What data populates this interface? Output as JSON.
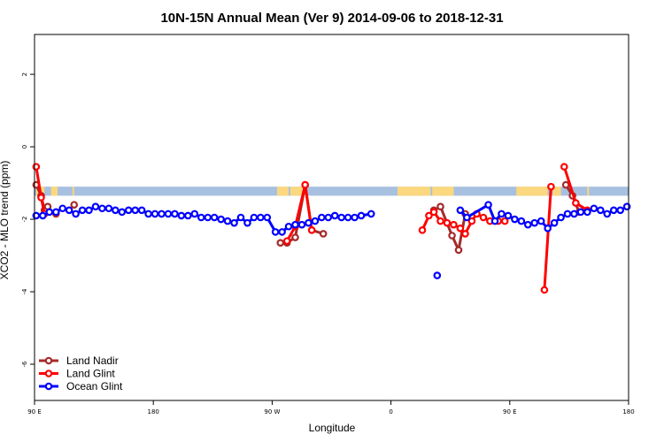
{
  "chart_data": {
    "type": "line",
    "title": "10N-15N Annual Mean (Ver 9)   2014-09-06 to 2018-12-31",
    "xlabel": "Longitude",
    "ylabel": "XCO2 - MLO trend (ppm)",
    "xlim": [
      -90,
      270
    ],
    "ylim": [
      -7,
      3.1
    ],
    "x_ticks": [
      -90,
      -18,
      54,
      126,
      198,
      270
    ],
    "x_tick_labels": [
      "90 E",
      "180",
      "90 W",
      "0",
      "90 E",
      "180"
    ],
    "y_ticks": [
      2,
      0,
      -2,
      -4,
      -6
    ],
    "y_tick_labels": [
      "2",
      "0",
      "-2",
      "-4",
      "-6"
    ],
    "grid": false,
    "legend_position": "bottom-left",
    "land_strip": {
      "y_top": -1.1,
      "y_bottom": -1.35,
      "ocean_color": "#a8c0e0",
      "land_color": "#fbd87f"
    },
    "land_segments": [
      [
        -89,
        -84
      ],
      [
        -80,
        -76
      ],
      [
        -67,
        -66
      ],
      [
        57,
        64
      ],
      [
        65,
        74
      ],
      [
        130,
        150
      ],
      [
        151,
        164
      ],
      [
        202,
        221
      ],
      [
        224,
        229
      ],
      [
        245,
        246
      ]
    ],
    "series": [
      {
        "name": "Land Nadir",
        "color": "#a52a2a",
        "points": [
          [
            -89,
            -1.05
          ],
          [
            -86,
            -1.35
          ],
          [
            -84,
            -1.75
          ],
          [
            -82,
            -1.65
          ],
          [
            -77,
            -1.85
          ],
          [
            -66,
            -1.6
          ],
          [
            59,
            -2.65
          ],
          [
            63,
            -2.65
          ],
          [
            68,
            -2.5
          ],
          [
            74,
            -1.05
          ],
          [
            78,
            -2.3
          ],
          [
            85,
            -2.4
          ],
          [
            152,
            -1.75
          ],
          [
            156,
            -1.65
          ],
          [
            163,
            -2.45
          ],
          [
            167,
            -2.85
          ],
          [
            171,
            -1.85
          ],
          [
            232,
            -1.05
          ],
          [
            236,
            -1.35
          ],
          [
            240,
            -1.8
          ]
        ],
        "connected": [
          [
            0,
            1,
            2,
            3
          ],
          [
            6,
            7,
            8,
            9,
            10,
            11
          ],
          [
            12,
            13,
            14,
            15,
            16
          ],
          [
            17,
            18,
            19
          ]
        ]
      },
      {
        "name": "Land Glint",
        "color": "#ff0000",
        "points": [
          [
            -89,
            -0.55
          ],
          [
            -86,
            -1.4
          ],
          [
            -84,
            -1.85
          ],
          [
            63,
            -2.6
          ],
          [
            68,
            -2.2
          ],
          [
            74,
            -1.05
          ],
          [
            78,
            -2.3
          ],
          [
            145,
            -2.3
          ],
          [
            149,
            -1.9
          ],
          [
            152,
            -1.8
          ],
          [
            156,
            -2.05
          ],
          [
            160,
            -2.1
          ],
          [
            164,
            -2.15
          ],
          [
            168,
            -2.25
          ],
          [
            171,
            -2.4
          ],
          [
            175,
            -2.05
          ],
          [
            178,
            -1.85
          ],
          [
            182,
            -1.95
          ],
          [
            186,
            -2.05
          ],
          [
            191,
            -2.05
          ],
          [
            195,
            -2.05
          ],
          [
            219,
            -3.95
          ],
          [
            223,
            -1.1
          ],
          [
            231,
            -0.55
          ],
          [
            238,
            -1.55
          ],
          [
            245,
            -1.75
          ]
        ],
        "connected": [
          [
            0,
            1,
            2
          ],
          [
            3,
            4,
            5,
            6
          ],
          [
            7,
            8,
            9,
            10,
            11,
            12,
            13,
            14,
            15,
            16,
            17,
            18
          ],
          [
            19,
            20
          ],
          [
            21,
            22
          ],
          [
            23,
            24,
            25
          ]
        ]
      },
      {
        "name": "Ocean Glint",
        "color": "#0000ff",
        "points": [
          [
            -89,
            -1.9
          ],
          [
            -85,
            -1.9
          ],
          [
            -81,
            -1.8
          ],
          [
            -77,
            -1.8
          ],
          [
            -73,
            -1.7
          ],
          [
            -69,
            -1.75
          ],
          [
            -65,
            -1.85
          ],
          [
            -61,
            -1.75
          ],
          [
            -57,
            -1.75
          ],
          [
            -53,
            -1.65
          ],
          [
            -49,
            -1.7
          ],
          [
            -45,
            -1.7
          ],
          [
            -41,
            -1.75
          ],
          [
            -37,
            -1.8
          ],
          [
            -33,
            -1.75
          ],
          [
            -29,
            -1.75
          ],
          [
            -25,
            -1.75
          ],
          [
            -21,
            -1.85
          ],
          [
            -17,
            -1.85
          ],
          [
            -13,
            -1.85
          ],
          [
            -9,
            -1.85
          ],
          [
            -5,
            -1.85
          ],
          [
            -1,
            -1.9
          ],
          [
            3,
            -1.9
          ],
          [
            7,
            -1.85
          ],
          [
            11,
            -1.95
          ],
          [
            15,
            -1.95
          ],
          [
            19,
            -1.95
          ],
          [
            23,
            -2.0
          ],
          [
            27,
            -2.05
          ],
          [
            31,
            -2.1
          ],
          [
            35,
            -1.95
          ],
          [
            39,
            -2.1
          ],
          [
            43,
            -1.95
          ],
          [
            47,
            -1.95
          ],
          [
            51,
            -1.95
          ],
          [
            56,
            -2.35
          ],
          [
            60,
            -2.35
          ],
          [
            64,
            -2.2
          ],
          [
            68,
            -2.15
          ],
          [
            72,
            -2.15
          ],
          [
            76,
            -2.1
          ],
          [
            80,
            -2.05
          ],
          [
            84,
            -1.95
          ],
          [
            88,
            -1.95
          ],
          [
            92,
            -1.9
          ],
          [
            96,
            -1.95
          ],
          [
            100,
            -1.95
          ],
          [
            104,
            -1.95
          ],
          [
            108,
            -1.9
          ],
          [
            114,
            -1.85
          ],
          [
            154,
            -3.55
          ],
          [
            168,
            -1.75
          ],
          [
            172,
            -1.95
          ],
          [
            185,
            -1.6
          ],
          [
            189,
            -2.05
          ],
          [
            193,
            -1.85
          ],
          [
            197,
            -1.9
          ],
          [
            201,
            -2.0
          ],
          [
            205,
            -2.05
          ],
          [
            209,
            -2.15
          ],
          [
            213,
            -2.1
          ],
          [
            217,
            -2.05
          ],
          [
            221,
            -2.25
          ],
          [
            225,
            -2.1
          ],
          [
            229,
            -1.95
          ],
          [
            233,
            -1.85
          ],
          [
            237,
            -1.85
          ],
          [
            241,
            -1.8
          ],
          [
            245,
            -1.8
          ],
          [
            249,
            -1.7
          ],
          [
            253,
            -1.75
          ],
          [
            257,
            -1.85
          ],
          [
            261,
            -1.75
          ],
          [
            265,
            -1.75
          ],
          [
            269,
            -1.65
          ]
        ],
        "connected": [
          [
            0,
            1,
            2,
            3,
            4,
            5,
            6,
            7,
            8,
            9,
            10,
            11,
            12,
            13,
            14,
            15,
            16,
            17,
            18,
            19,
            20,
            21,
            22,
            23,
            24,
            25,
            26,
            27,
            28,
            29,
            30,
            31,
            32,
            33,
            34,
            35,
            36,
            37,
            38,
            39,
            40,
            41,
            42,
            43,
            44,
            45,
            46,
            47,
            48,
            49,
            50
          ],
          [
            52,
            53,
            54,
            55,
            56,
            57,
            58,
            59,
            60,
            61,
            62,
            63,
            64,
            65,
            66,
            67,
            68,
            69,
            70,
            71,
            72,
            73,
            74,
            75
          ]
        ]
      }
    ]
  }
}
